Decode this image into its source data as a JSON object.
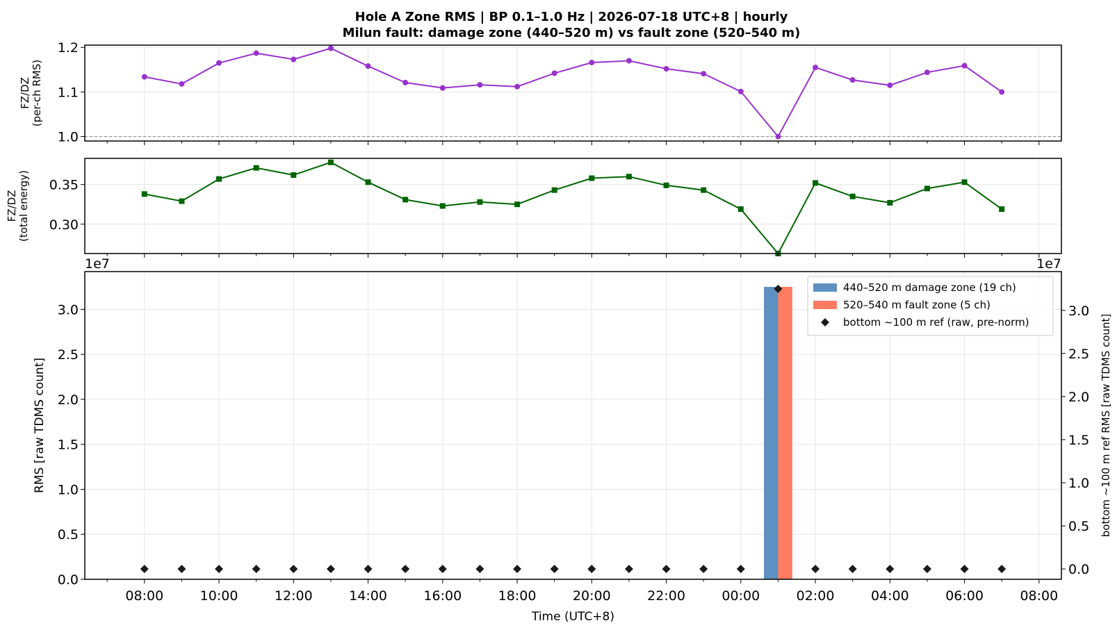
{
  "title_line1": "Hole A Zone RMS  |  BP 0.1–1.0 Hz  |  2026-07-18 UTC+8  |  hourly",
  "title_line2": "Milun fault: damage zone (440–520 m) vs fault zone (520–540 m)",
  "chart_data": [
    {
      "type": "line",
      "panel": "top",
      "ylabel_line1": "FZ/DZ",
      "ylabel_line2": "(per-ch RMS)",
      "ylim": [
        0.99,
        1.205
      ],
      "yticks": [
        "1.0",
        "1.1",
        "1.2"
      ],
      "ytick_values": [
        1.0,
        1.1,
        1.2
      ],
      "reference_line": 1.0,
      "color": "#9932CC",
      "marker": "circle",
      "grid": true,
      "x_hours": [
        8,
        9,
        10,
        11,
        12,
        13,
        14,
        15,
        16,
        17,
        18,
        19,
        20,
        21,
        22,
        23,
        24,
        25,
        26,
        27,
        28,
        29,
        30,
        31
      ],
      "values": [
        1.134,
        1.118,
        1.165,
        1.187,
        1.173,
        1.198,
        1.158,
        1.121,
        1.109,
        1.116,
        1.112,
        1.142,
        1.166,
        1.17,
        1.152,
        1.141,
        1.101,
        1.0,
        1.155,
        1.127,
        1.115,
        1.144,
        1.159,
        1.1
      ]
    },
    {
      "type": "line",
      "panel": "middle",
      "ylabel_line1": "FZ/DZ",
      "ylabel_line2": "(total energy)",
      "ylim": [
        0.263,
        0.383
      ],
      "yticks": [
        "0.30",
        "0.35"
      ],
      "ytick_values": [
        0.3,
        0.35
      ],
      "reference_line": 0.263,
      "color": "#006400",
      "marker": "square",
      "grid": true,
      "x_hours": [
        8,
        9,
        10,
        11,
        12,
        13,
        14,
        15,
        16,
        17,
        18,
        19,
        20,
        21,
        22,
        23,
        24,
        25,
        26,
        27,
        28,
        29,
        30,
        31
      ],
      "values": [
        0.338,
        0.329,
        0.357,
        0.371,
        0.362,
        0.378,
        0.353,
        0.331,
        0.323,
        0.328,
        0.325,
        0.343,
        0.358,
        0.36,
        0.349,
        0.343,
        0.319,
        0.263,
        0.352,
        0.335,
        0.327,
        0.345,
        0.353,
        0.319
      ]
    },
    {
      "type": "bar",
      "panel": "bottom",
      "xlabel": "Time (UTC+8)",
      "ylabel_left": "RMS  [raw TDMS count]",
      "ylabel_right": "bottom ~100 m ref RMS  [raw TDMS count]",
      "offset_text_left": "1e7",
      "offset_text_right": "1e7",
      "ylim_left": [
        0,
        3.42
      ],
      "yticks_left": [
        "0.0",
        "0.5",
        "1.0",
        "1.5",
        "2.0",
        "2.5",
        "3.0"
      ],
      "ylim_right": [
        -0.12,
        3.45
      ],
      "yticks_right": [
        "0.0",
        "0.5",
        "1.0",
        "1.5",
        "2.0",
        "2.5",
        "3.0"
      ],
      "xlim_hours": [
        6.4,
        32.6
      ],
      "xticks": [
        "08:00",
        "10:00",
        "12:00",
        "14:00",
        "16:00",
        "18:00",
        "20:00",
        "22:00",
        "00:00",
        "02:00",
        "04:00",
        "06:00",
        "08:00"
      ],
      "xtick_hours": [
        8,
        10,
        12,
        14,
        16,
        18,
        20,
        22,
        24,
        26,
        28,
        30,
        32
      ],
      "grid": true,
      "legend_position": "upper-right",
      "series": [
        {
          "name": "440–520 m  damage zone (19 ch)",
          "color": "#6090BF",
          "kind": "bar",
          "x_hours": [
            25
          ],
          "values": [
            3.25
          ],
          "offset": -0.19
        },
        {
          "name": "520–540 m  fault zone (5 ch)",
          "color": "#FF7B61",
          "kind": "bar",
          "x_hours": [
            25
          ],
          "values": [
            3.25
          ],
          "offset": 0.19
        },
        {
          "name": "bottom ~100 m ref (raw, pre-norm)",
          "color": "#1a1a1a",
          "kind": "marker",
          "axis": "right",
          "x_hours": [
            8,
            9,
            10,
            11,
            12,
            13,
            14,
            15,
            16,
            17,
            18,
            19,
            20,
            21,
            22,
            23,
            24,
            25,
            26,
            27,
            28,
            29,
            30,
            31
          ],
          "values": [
            0,
            0,
            0,
            0,
            0,
            0,
            0,
            0,
            0,
            0,
            0,
            0,
            0,
            0,
            0,
            0,
            0,
            3.25,
            0,
            0,
            0,
            0,
            0,
            0
          ]
        }
      ]
    }
  ]
}
